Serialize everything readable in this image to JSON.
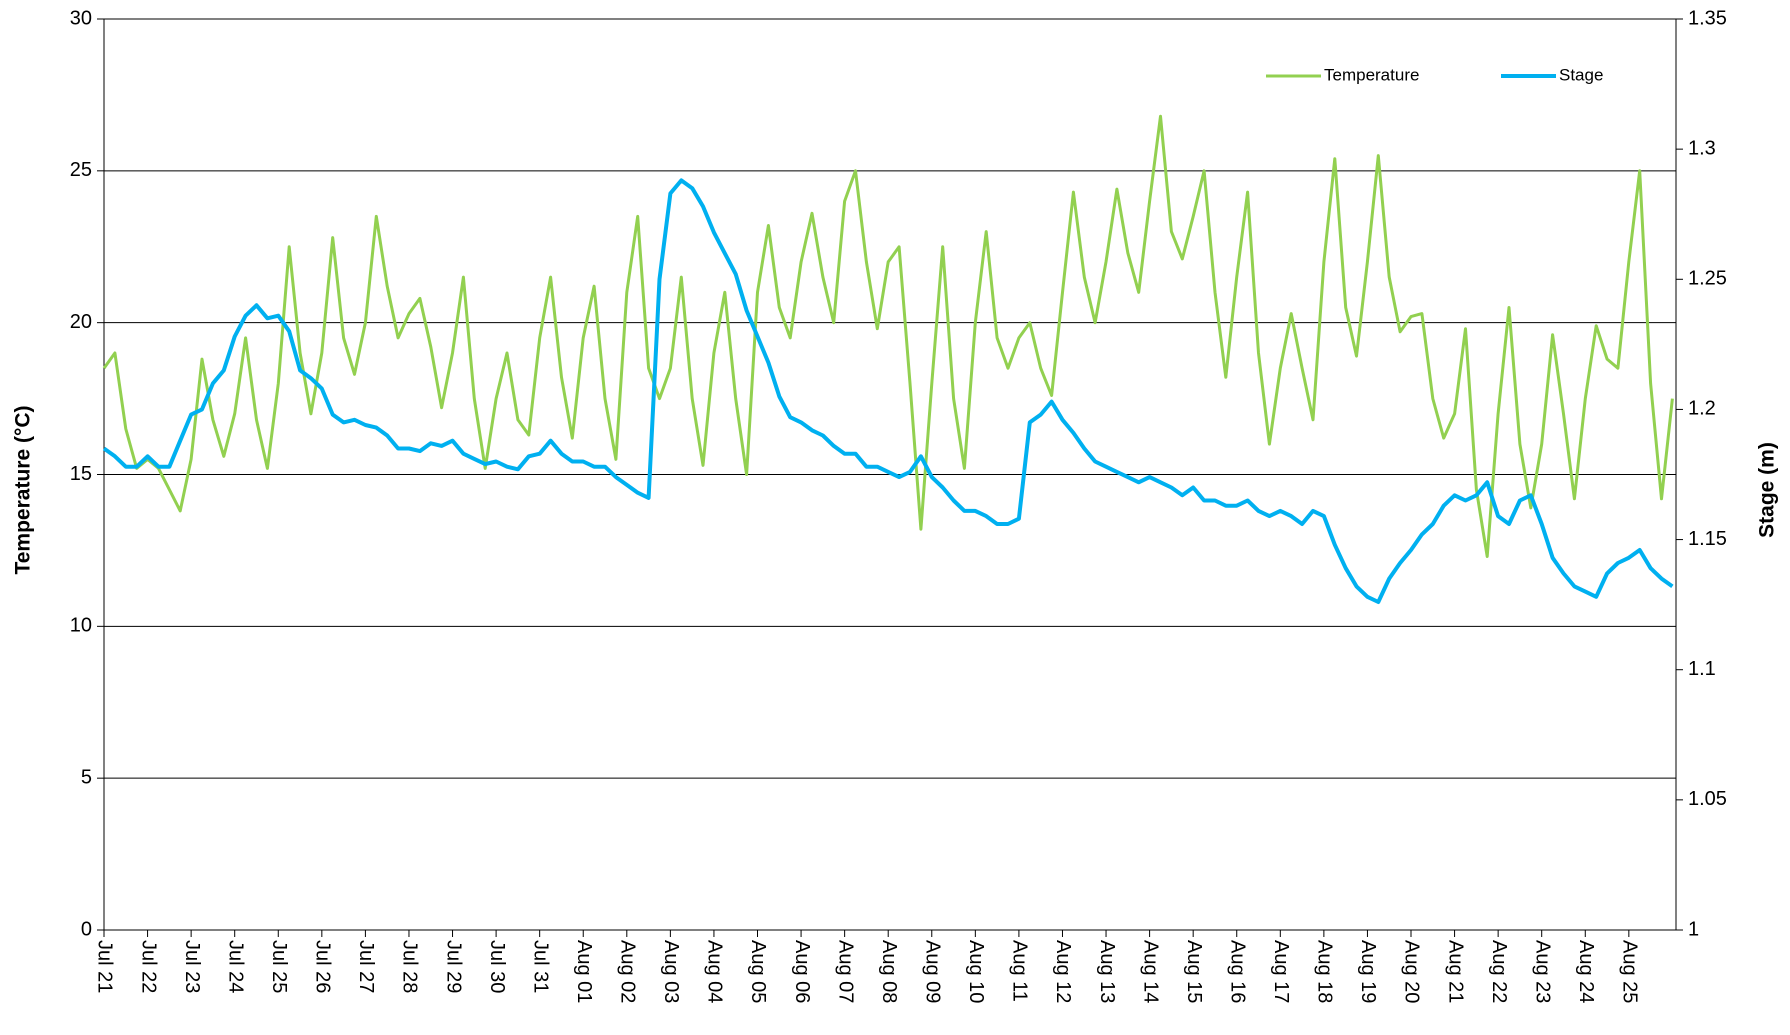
{
  "chart_data": {
    "type": "line",
    "y_label": "Temperature (°C)",
    "y2_label": "Stage (m)",
    "categories": [
      "Jul 21",
      null,
      null,
      null,
      "Jul 22",
      null,
      null,
      null,
      "Jul 23",
      null,
      null,
      null,
      "Jul 24",
      null,
      null,
      null,
      "Jul 25",
      null,
      null,
      null,
      "Jul 26",
      null,
      null,
      null,
      "Jul 27",
      null,
      null,
      null,
      "Jul 28",
      null,
      null,
      null,
      "Jul 29",
      null,
      null,
      null,
      "Jul 30",
      null,
      null,
      null,
      "Jul 31",
      null,
      null,
      null,
      "Aug 01",
      null,
      null,
      null,
      "Aug 02",
      null,
      null,
      null,
      "Aug 03",
      null,
      null,
      null,
      "Aug 04",
      null,
      null,
      null,
      "Aug 05",
      null,
      null,
      null,
      "Aug 06",
      null,
      null,
      null,
      "Aug 07",
      null,
      null,
      null,
      "Aug 08",
      null,
      null,
      null,
      "Aug 09",
      null,
      null,
      null,
      "Aug 10",
      null,
      null,
      null,
      "Aug 11",
      null,
      null,
      null,
      "Aug 12",
      null,
      null,
      null,
      "Aug 13",
      null,
      null,
      null,
      "Aug 14",
      null,
      null,
      null,
      "Aug 15",
      null,
      null,
      null,
      "Aug 16",
      null,
      null,
      null,
      "Aug 17",
      null,
      null,
      null,
      "Aug 18",
      null,
      null,
      null,
      "Aug 19",
      null,
      null,
      null,
      "Aug 20",
      null,
      null,
      null,
      "Aug 21",
      null,
      null,
      null,
      "Aug 22",
      null,
      null,
      null,
      "Aug 23",
      null,
      null,
      null,
      "Aug 24",
      null,
      null,
      null,
      "Aug 25",
      null,
      null,
      null,
      null
    ],
    "series": [
      {
        "name": "Temperature",
        "color": "#92d050",
        "axis": "y",
        "values": [
          18.5,
          19.0,
          16.5,
          15.2,
          15.5,
          15.2,
          14.5,
          13.8,
          15.5,
          18.8,
          16.8,
          15.6,
          17,
          19.5,
          16.8,
          15.2,
          18,
          22.5,
          19,
          17,
          19,
          22.8,
          19.5,
          18.3,
          20,
          23.5,
          21.2,
          19.5,
          20.3,
          20.8,
          19.2,
          17.2,
          19,
          21.5,
          17.5,
          15.2,
          17.5,
          19,
          16.8,
          16.3,
          19.5,
          21.5,
          18.2,
          16.2,
          19.5,
          21.2,
          17.5,
          15.5,
          21,
          23.5,
          18.5,
          17.5,
          18.5,
          21.5,
          17.5,
          15.3,
          19,
          21,
          17.5,
          15,
          21,
          23.2,
          20.5,
          19.5,
          22,
          23.6,
          21.5,
          20,
          24,
          25,
          22,
          19.8,
          22,
          22.5,
          18,
          13.2,
          18,
          22.5,
          17.5,
          15.2,
          20,
          23,
          19.5,
          18.5,
          19.5,
          20,
          18.5,
          17.6,
          21,
          24.3,
          21.5,
          20,
          22,
          24.4,
          22.3,
          21,
          24,
          26.8,
          23,
          22.1,
          23.5,
          25,
          21,
          18.2,
          21.5,
          24.3,
          19,
          16,
          18.5,
          20.3,
          18.5,
          16.8,
          22,
          25.4,
          20.5,
          18.9,
          22,
          25.5,
          21.5,
          19.7,
          20.2,
          20.3,
          17.5,
          16.2,
          17,
          19.8,
          14.5,
          12.3,
          17,
          20.5,
          16,
          13.9,
          16,
          19.6,
          17,
          14.2,
          17.5,
          19.9,
          18.8,
          18.5,
          22,
          25,
          18,
          14.2,
          17.5
        ]
      },
      {
        "name": "Stage",
        "color": "#00b0f0",
        "axis": "y2",
        "values": [
          1.185,
          1.182,
          1.178,
          1.178,
          1.182,
          1.178,
          1.178,
          1.188,
          1.198,
          1.2,
          1.21,
          1.215,
          1.228,
          1.236,
          1.24,
          1.235,
          1.236,
          1.23,
          1.215,
          1.212,
          1.208,
          1.198,
          1.195,
          1.196,
          1.194,
          1.193,
          1.19,
          1.185,
          1.185,
          1.184,
          1.187,
          1.186,
          1.188,
          1.183,
          1.181,
          1.179,
          1.18,
          1.178,
          1.177,
          1.182,
          1.183,
          1.188,
          1.183,
          1.18,
          1.18,
          1.178,
          1.178,
          1.174,
          1.171,
          1.168,
          1.166,
          1.25,
          1.283,
          1.288,
          1.285,
          1.278,
          1.268,
          1.26,
          1.252,
          1.238,
          1.228,
          1.218,
          1.205,
          1.197,
          1.195,
          1.192,
          1.19,
          1.186,
          1.183,
          1.183,
          1.178,
          1.178,
          1.176,
          1.174,
          1.176,
          1.182,
          1.174,
          1.17,
          1.165,
          1.161,
          1.161,
          1.159,
          1.156,
          1.156,
          1.158,
          1.195,
          1.198,
          1.203,
          1.196,
          1.191,
          1.185,
          1.18,
          1.178,
          1.176,
          1.174,
          1.172,
          1.174,
          1.172,
          1.17,
          1.167,
          1.17,
          1.165,
          1.165,
          1.163,
          1.163,
          1.165,
          1.161,
          1.159,
          1.161,
          1.159,
          1.156,
          1.161,
          1.159,
          1.148,
          1.139,
          1.132,
          1.128,
          1.126,
          1.135,
          1.141,
          1.146,
          1.152,
          1.156,
          1.163,
          1.167,
          1.165,
          1.167,
          1.172,
          1.159,
          1.156,
          1.165,
          1.167,
          1.156,
          1.143,
          1.137,
          1.132,
          1.13,
          1.128,
          1.137,
          1.141,
          1.143,
          1.146,
          1.139,
          1.135,
          1.132
        ]
      }
    ],
    "ylim": [
      0,
      30
    ],
    "yticks": [
      0,
      5,
      10,
      15,
      20,
      25,
      30
    ],
    "y2lim": [
      1,
      1.35
    ],
    "y2ticks": [
      1,
      1.05,
      1.1,
      1.15,
      1.2,
      1.25,
      1.3,
      1.35
    ],
    "grid": true,
    "legend": "upper right"
  }
}
